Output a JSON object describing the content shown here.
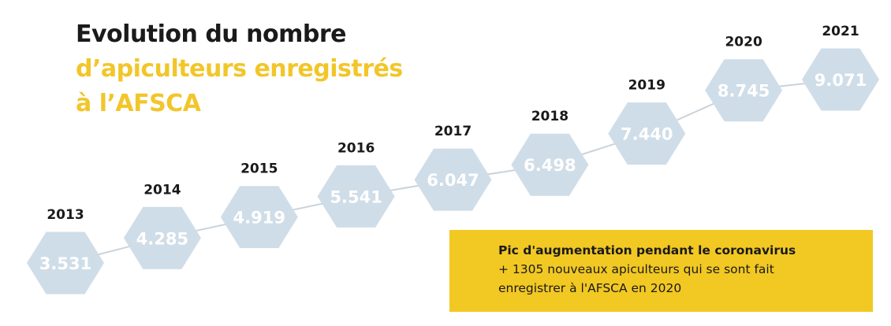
{
  "title": {
    "line1": "Evolution du nombre",
    "line2": "d’apiculteurs enregistrés",
    "line3": "à l’AFSCA"
  },
  "callout": {
    "heading": "Pic d'augmentation pendant le coronavirus",
    "line1": "+ 1305 nouveaux apiculteurs qui se sont fait",
    "line2": "enregistrer à l'AFSCA en 2020"
  },
  "colors": {
    "hexagon": "#cfdde8",
    "title_dark": "#1a1a1a",
    "title_accent": "#f2c62a",
    "callout_bg": "#f2c823",
    "line": "#c9d3da"
  },
  "chart_data": {
    "type": "line",
    "title": "Evolution du nombre d’apiculteurs enregistrés à l’AFSCA",
    "categories": [
      "2013",
      "2014",
      "2015",
      "2016",
      "2017",
      "2018",
      "2019",
      "2020",
      "2021"
    ],
    "values": [
      3531,
      4285,
      4919,
      5541,
      6047,
      6498,
      7440,
      8745,
      9071
    ],
    "value_labels": [
      "3.531",
      "4.285",
      "4.919",
      "5.541",
      "6.047",
      "6.498",
      "7.440",
      "8.745",
      "9.071"
    ],
    "marker": "hexagon"
  }
}
